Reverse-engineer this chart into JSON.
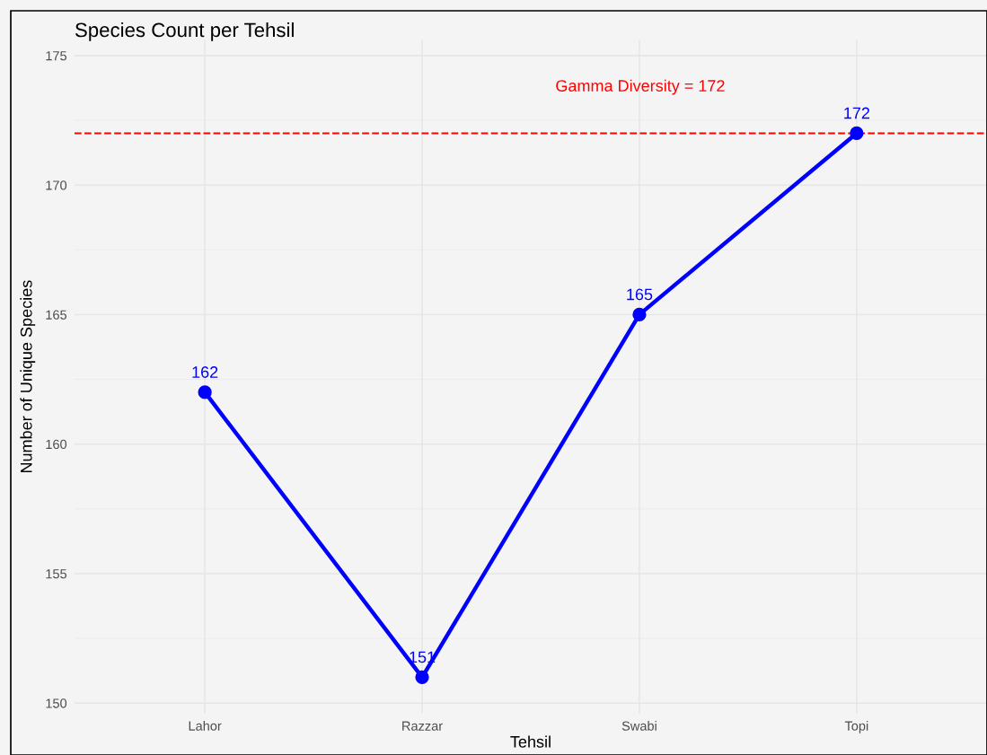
{
  "chart_data": {
    "type": "line",
    "title": "Species Count per Tehsil",
    "xlabel": "Tehsil",
    "ylabel": "Number of Unique Species",
    "categories": [
      "Lahor",
      "Razzar",
      "Swabi",
      "Topi"
    ],
    "series": [
      {
        "color": "#0000ff",
        "values": [
          162,
          151,
          165,
          172
        ]
      }
    ],
    "data_labels": true,
    "marker": "circle",
    "line_style": "solid",
    "ylim": [
      149.6,
      175.6
    ],
    "yticks": [
      150,
      155,
      160,
      165,
      170,
      175
    ],
    "grid": true,
    "ref_lines": [
      {
        "axis": "y",
        "value": 172,
        "color": "#ff0000",
        "line_style": "dashed"
      }
    ],
    "annotations": [
      "Gamma Diversity = 172"
    ]
  }
}
